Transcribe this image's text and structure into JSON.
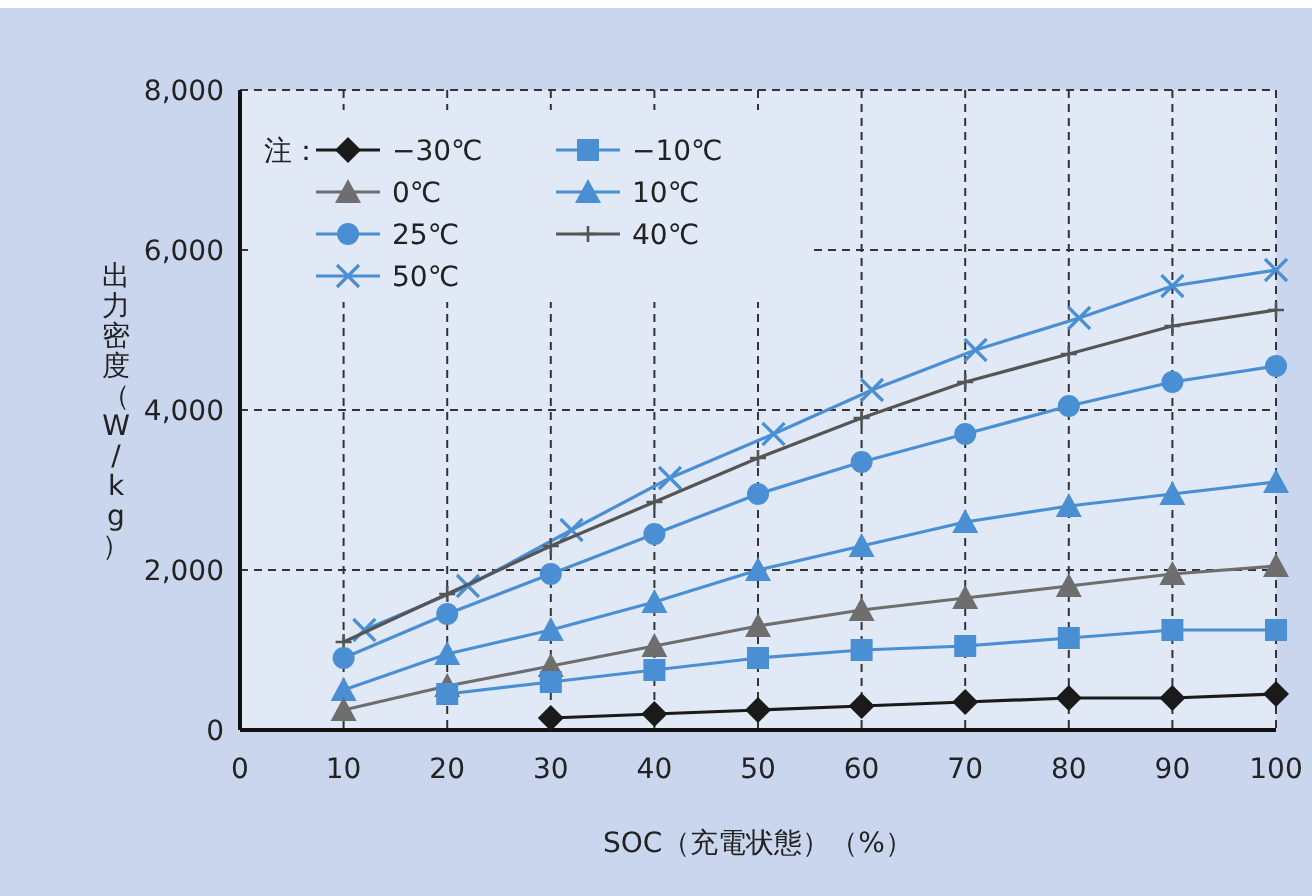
{
  "chart_data": {
    "type": "line",
    "xlabel": "SOC（充電状態）（%）",
    "ylabel": "出力密度（W/kg）",
    "legend_title": "注：",
    "xlim": [
      0,
      100
    ],
    "ylim": [
      0,
      8000
    ],
    "xticks": [
      0,
      10,
      20,
      30,
      40,
      50,
      60,
      70,
      80,
      90,
      100
    ],
    "yticks": [
      {
        "value": 0,
        "label": "0"
      },
      {
        "value": 2000,
        "label": "2,000"
      },
      {
        "value": 4000,
        "label": "4,000"
      },
      {
        "value": 6000,
        "label": "6,000"
      },
      {
        "value": 8000,
        "label": "8,000"
      }
    ],
    "grid": true,
    "legend": "top left",
    "line_style": "solid",
    "x": [
      10,
      20,
      30,
      40,
      50,
      60,
      70,
      80,
      90,
      100
    ],
    "series": [
      {
        "name": "−30℃",
        "color": "#1a1a1a",
        "marker": "diamond",
        "values": [
          null,
          null,
          150,
          200,
          250,
          300,
          350,
          400,
          400,
          450
        ]
      },
      {
        "name": "−10℃",
        "color": "#4a8fd4",
        "marker": "square",
        "values": [
          null,
          450,
          600,
          750,
          900,
          1000,
          1050,
          1150,
          1250,
          1250
        ]
      },
      {
        "name": "0℃",
        "color": "#6e6e6e",
        "marker": "triangle",
        "values": [
          250,
          550,
          800,
          1050,
          1300,
          1500,
          1650,
          1800,
          1950,
          2050
        ]
      },
      {
        "name": "10℃",
        "color": "#4a8fd4",
        "marker": "triangle",
        "values": [
          500,
          950,
          1250,
          1600,
          2000,
          2300,
          2600,
          2800,
          2950,
          3100
        ]
      },
      {
        "name": "25℃",
        "color": "#4a8fd4",
        "marker": "circle",
        "values": [
          900,
          1450,
          1950,
          2450,
          2950,
          3350,
          3700,
          4050,
          4350,
          4550
        ]
      },
      {
        "name": "40℃",
        "color": "#555555",
        "marker": "plus",
        "values": [
          1100,
          1700,
          2300,
          2850,
          3400,
          3900,
          4350,
          4700,
          5050,
          5250
        ]
      },
      {
        "name": "50℃",
        "color": "#4a8fd4",
        "marker": "cross",
        "x": [
          12,
          22,
          32,
          41.5,
          51.5,
          61,
          71,
          81,
          90,
          100
        ],
        "values": [
          1250,
          1800,
          2500,
          3150,
          3700,
          4250,
          4750,
          5150,
          5550,
          5750
        ]
      }
    ]
  }
}
